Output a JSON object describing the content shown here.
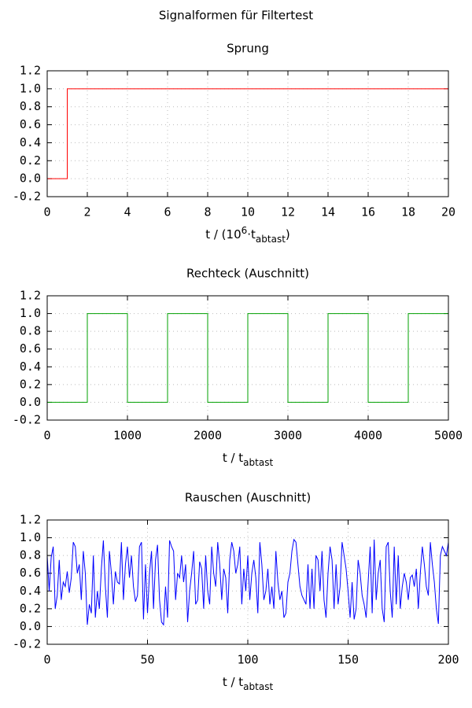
{
  "title": "Signalformen für Filtertest",
  "chart_data": [
    {
      "type": "line",
      "title": "Sprung",
      "xlabel": [
        "t / (10",
        "6",
        "·t",
        "abtast",
        ")"
      ],
      "color": "#ff0000",
      "x": [
        0,
        1,
        1,
        20
      ],
      "values": [
        0,
        0,
        1,
        1
      ],
      "xlim": [
        0,
        20
      ],
      "xticks": [
        0,
        2,
        4,
        6,
        8,
        10,
        12,
        14,
        16,
        18,
        20
      ],
      "ylim": [
        -0.2,
        1.2
      ],
      "yticks": [
        -0.2,
        {
          "value": 0,
          "label": "0.0"
        },
        0.2,
        0.4,
        0.6,
        0.8,
        {
          "value": 1,
          "label": "1.0"
        },
        1.2
      ],
      "grid": true
    },
    {
      "type": "line",
      "title": "Rechteck (Auschnitt)",
      "xlabel": [
        "t / t",
        "abtast"
      ],
      "color": "#00a000",
      "x": [
        0,
        500,
        500,
        1000,
        1000,
        1500,
        1500,
        2000,
        2000,
        2500,
        2500,
        3000,
        3000,
        3500,
        3500,
        4000,
        4000,
        4500,
        4500,
        5000
      ],
      "values": [
        0,
        0,
        1,
        1,
        0,
        0,
        1,
        1,
        0,
        0,
        1,
        1,
        0,
        0,
        1,
        1,
        0,
        0,
        1,
        1
      ],
      "xlim": [
        0,
        5000
      ],
      "xticks": [
        0,
        1000,
        2000,
        3000,
        4000,
        5000
      ],
      "ylim": [
        -0.2,
        1.2
      ],
      "yticks": [
        -0.2,
        {
          "value": 0,
          "label": "0.0"
        },
        0.2,
        0.4,
        0.6,
        0.8,
        {
          "value": 1,
          "label": "1.0"
        },
        1.2
      ],
      "grid": true
    },
    {
      "type": "line",
      "title": "Rauschen (Auschnitt)",
      "xlabel": [
        "t / t",
        "abtast"
      ],
      "color": "#0000ff",
      "x": [
        0,
        1,
        2,
        3,
        4,
        5,
        6,
        7,
        8,
        9,
        10,
        11,
        12,
        13,
        14,
        15,
        16,
        17,
        18,
        19,
        20,
        21,
        22,
        23,
        24,
        25,
        26,
        27,
        28,
        29,
        30,
        31,
        32,
        33,
        34,
        35,
        36,
        37,
        38,
        39,
        40,
        41,
        42,
        43,
        44,
        45,
        46,
        47,
        48,
        49,
        50,
        51,
        52,
        53,
        54,
        55,
        56,
        57,
        58,
        59,
        60,
        61,
        62,
        63,
        64,
        65,
        66,
        67,
        68,
        69,
        70,
        71,
        72,
        73,
        74,
        75,
        76,
        77,
        78,
        79,
        80,
        81,
        82,
        83,
        84,
        85,
        86,
        87,
        88,
        89,
        90,
        91,
        92,
        93,
        94,
        95,
        96,
        97,
        98,
        99,
        100,
        101,
        102,
        103,
        104,
        105,
        106,
        107,
        108,
        109,
        110,
        111,
        112,
        113,
        114,
        115,
        116,
        117,
        118,
        119,
        120,
        121,
        122,
        123,
        124,
        125,
        126,
        127,
        128,
        129,
        130,
        131,
        132,
        133,
        134,
        135,
        136,
        137,
        138,
        139,
        140,
        141,
        142,
        143,
        144,
        145,
        146,
        147,
        148,
        149,
        150,
        151,
        152,
        153,
        154,
        155,
        156,
        157,
        158,
        159,
        160,
        161,
        162,
        163,
        164,
        165,
        166,
        167,
        168,
        169,
        170,
        171,
        172,
        173,
        174,
        175,
        176,
        177,
        178,
        179,
        180,
        181,
        182,
        183,
        184,
        185,
        186,
        187,
        188,
        189,
        190,
        191,
        192,
        193,
        194,
        195,
        196,
        197,
        198,
        199,
        200
      ],
      "values": [
        0.8,
        0.4,
        0.78,
        0.9,
        0.2,
        0.35,
        0.75,
        0.3,
        0.5,
        0.45,
        0.62,
        0.38,
        0.55,
        0.95,
        0.9,
        0.6,
        0.7,
        0.3,
        0.85,
        0.6,
        0.02,
        0.25,
        0.15,
        0.8,
        0.1,
        0.4,
        0.2,
        0.65,
        0.97,
        0.45,
        0.1,
        0.85,
        0.6,
        0.25,
        0.62,
        0.5,
        0.48,
        0.95,
        0.3,
        0.7,
        0.9,
        0.55,
        0.8,
        0.45,
        0.28,
        0.35,
        0.9,
        0.95,
        0.08,
        0.7,
        0.15,
        0.6,
        0.85,
        0.2,
        0.75,
        0.92,
        0.3,
        0.05,
        0.02,
        0.45,
        0.1,
        0.97,
        0.9,
        0.85,
        0.3,
        0.6,
        0.55,
        0.8,
        0.5,
        0.7,
        0.05,
        0.4,
        0.6,
        0.85,
        0.25,
        0.3,
        0.73,
        0.65,
        0.2,
        0.8,
        0.4,
        0.25,
        0.9,
        0.6,
        0.45,
        0.95,
        0.7,
        0.3,
        0.65,
        0.55,
        0.15,
        0.75,
        0.95,
        0.85,
        0.6,
        0.7,
        0.9,
        0.25,
        0.65,
        0.4,
        0.8,
        0.3,
        0.6,
        0.75,
        0.55,
        0.15,
        0.95,
        0.7,
        0.3,
        0.4,
        0.65,
        0.25,
        0.45,
        0.2,
        0.85,
        0.5,
        0.3,
        0.4,
        0.1,
        0.15,
        0.5,
        0.6,
        0.85,
        0.98,
        0.95,
        0.7,
        0.45,
        0.35,
        0.3,
        0.25,
        0.7,
        0.2,
        0.65,
        0.2,
        0.8,
        0.75,
        0.4,
        0.85,
        0.3,
        0.1,
        0.6,
        0.9,
        0.75,
        0.2,
        0.7,
        0.25,
        0.45,
        0.95,
        0.8,
        0.65,
        0.4,
        0.1,
        0.5,
        0.08,
        0.2,
        0.75,
        0.6,
        0.35,
        0.25,
        0.1,
        0.5,
        0.9,
        0.15,
        0.98,
        0.3,
        0.6,
        0.75,
        0.2,
        0.05,
        0.9,
        0.95,
        0.4,
        0.1,
        0.9,
        0.25,
        0.8,
        0.2,
        0.45,
        0.6,
        0.5,
        0.3,
        0.55,
        0.58,
        0.45,
        0.65,
        0.2,
        0.6,
        0.9,
        0.7,
        0.45,
        0.35,
        0.95,
        0.7,
        0.5,
        0.2,
        0.03,
        0.8,
        0.9,
        0.85,
        0.8,
        0.95
      ],
      "xlim": [
        0,
        200
      ],
      "xticks": [
        0,
        50,
        100,
        150,
        200
      ],
      "ylim": [
        -0.2,
        1.2
      ],
      "yticks": [
        -0.2,
        {
          "value": 0,
          "label": "0.0"
        },
        0.2,
        0.4,
        0.6,
        0.8,
        {
          "value": 1,
          "label": "1.0"
        },
        1.2
      ],
      "grid": true
    }
  ]
}
